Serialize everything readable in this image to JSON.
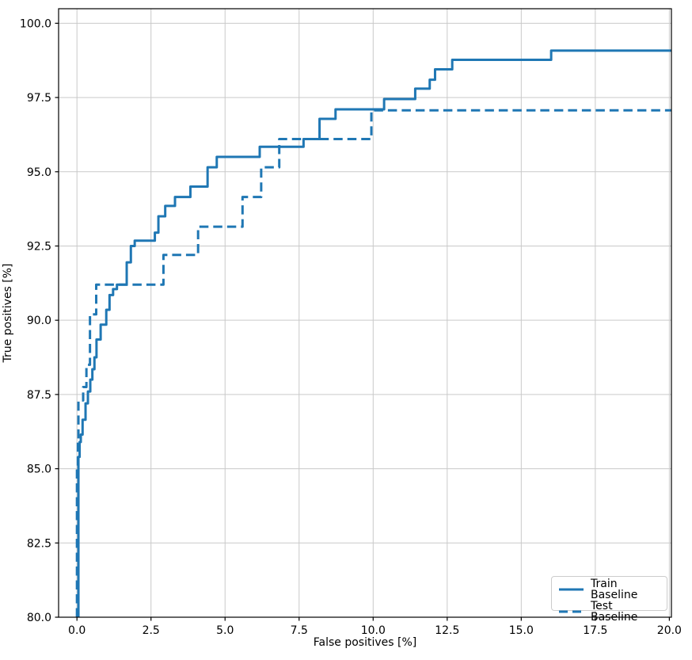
{
  "figure": {
    "background": "#ffffff",
    "plot_background": "#ffffff"
  },
  "chart_data": {
    "type": "line",
    "subtype": "step",
    "title": "",
    "xlabel": "False positives [%]",
    "ylabel": "True positives [%]",
    "xlim": [
      -0.62,
      20.07
    ],
    "ylim": [
      80,
      100.49
    ],
    "xticks": [
      0,
      2.5,
      5,
      7.5,
      10,
      12.5,
      15,
      17.5,
      20
    ],
    "xtick_labels": [
      "0.0",
      "2.5",
      "5.0",
      "7.5",
      "10.0",
      "12.5",
      "15.0",
      "17.5",
      "20.0"
    ],
    "yticks": [
      80,
      82.5,
      85,
      87.5,
      90,
      92.5,
      95,
      97.5,
      100
    ],
    "ytick_labels": [
      "80.0",
      "82.5",
      "85.0",
      "87.5",
      "90.0",
      "92.5",
      "95.0",
      "97.5",
      "100.0"
    ],
    "grid": true,
    "grid_color": "#c9c9c9",
    "axis_color": "#000000",
    "legend": {
      "position": "lower right"
    },
    "series": [
      {
        "name": "Train Baseline",
        "color": "#1f77b4",
        "line_style": "solid",
        "line_width": 3,
        "step_mode": "vertical-then-horizontal",
        "points": [
          [
            0.05,
            80.0
          ],
          [
            0.09,
            85.4
          ],
          [
            0.13,
            85.9
          ],
          [
            0.19,
            86.15
          ],
          [
            0.29,
            86.65
          ],
          [
            0.37,
            87.2
          ],
          [
            0.45,
            87.6
          ],
          [
            0.52,
            88.0
          ],
          [
            0.59,
            88.35
          ],
          [
            0.66,
            88.75
          ],
          [
            0.8,
            89.35
          ],
          [
            0.99,
            89.85
          ],
          [
            1.1,
            90.35
          ],
          [
            1.22,
            90.85
          ],
          [
            1.35,
            91.05
          ],
          [
            1.68,
            91.2
          ],
          [
            1.82,
            91.95
          ],
          [
            1.95,
            92.5
          ],
          [
            2.63,
            92.68
          ],
          [
            2.75,
            92.95
          ],
          [
            2.98,
            93.5
          ],
          [
            3.31,
            93.85
          ],
          [
            3.83,
            94.15
          ],
          [
            4.41,
            94.5
          ],
          [
            4.72,
            95.15
          ],
          [
            6.17,
            95.5
          ],
          [
            7.65,
            95.84
          ],
          [
            8.19,
            96.1
          ],
          [
            8.73,
            96.78
          ],
          [
            10.37,
            97.1
          ],
          [
            11.42,
            97.45
          ],
          [
            11.91,
            97.8
          ],
          [
            12.09,
            98.1
          ],
          [
            12.67,
            98.45
          ],
          [
            16.01,
            98.77
          ],
          [
            20.07,
            99.08
          ]
        ]
      },
      {
        "name": "Test Baseline",
        "color": "#1f77b4",
        "line_style": "dashed",
        "line_width": 3,
        "step_mode": "vertical-then-horizontal",
        "points": [
          [
            0.0,
            80.0
          ],
          [
            0.03,
            85.0
          ],
          [
            0.05,
            86.0
          ],
          [
            0.21,
            87.3
          ],
          [
            0.32,
            87.75
          ],
          [
            0.44,
            88.5
          ],
          [
            0.65,
            90.2
          ],
          [
            2.92,
            91.2
          ],
          [
            4.09,
            92.2
          ],
          [
            5.59,
            93.15
          ],
          [
            6.22,
            94.15
          ],
          [
            6.83,
            95.15
          ],
          [
            9.94,
            96.1
          ],
          [
            20.07,
            97.07
          ]
        ]
      }
    ]
  }
}
